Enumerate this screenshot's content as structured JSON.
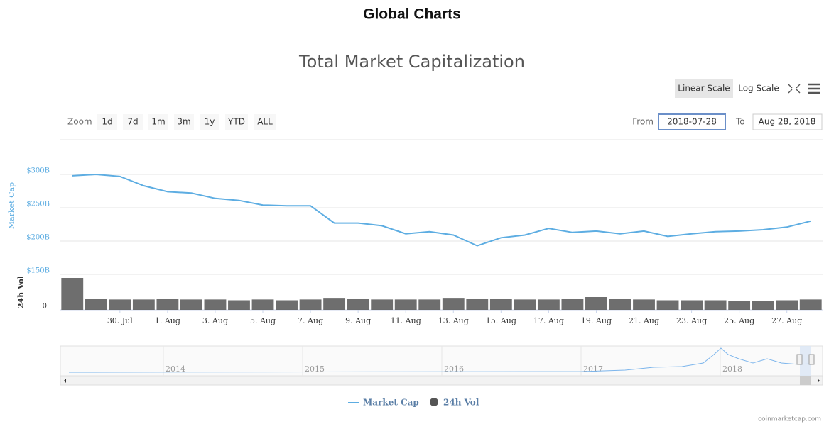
{
  "page_title": "Global Charts",
  "ui": {
    "scale_buttons": [
      "Linear Scale",
      "Log Scale"
    ],
    "zoom_label": "Zoom",
    "zoom_buttons": [
      "1d",
      "7d",
      "1m",
      "3m",
      "1y",
      "YTD",
      "ALL"
    ],
    "from_label": "From",
    "from_value": "2018-07-28",
    "to_label": "To",
    "to_value": "Aug 28, 2018",
    "navigator_labels": [
      "2014",
      "2015",
      "2016",
      "2017",
      "2018"
    ],
    "credit": "coinmarketcap.com"
  },
  "chart_data": {
    "type": "line",
    "title": "Total Market Capitalization",
    "y_label": "Market Cap",
    "y2_label": "24h Vol",
    "categories": [
      null,
      null,
      "30. Jul",
      null,
      "1. Aug",
      null,
      "3. Aug",
      null,
      "5. Aug",
      null,
      "7. Aug",
      null,
      "9. Aug",
      null,
      "11. Aug",
      null,
      "13. Aug",
      null,
      "15. Aug",
      null,
      "17. Aug",
      null,
      "19. Aug",
      null,
      "21. Aug",
      null,
      "23. Aug",
      null,
      "25. Aug",
      null,
      "27. Aug",
      null
    ],
    "series": [
      {
        "name": "Market Cap",
        "color": "#5dade2",
        "type": "line",
        "values": [
          298,
          300,
          297,
          283,
          274,
          272,
          264,
          261,
          254,
          253,
          253,
          227,
          227,
          223,
          211,
          214,
          209,
          193,
          205,
          209,
          219,
          213,
          215,
          211,
          215,
          207,
          211,
          214,
          215,
          217,
          221,
          230
        ]
      },
      {
        "name": "24h Vol",
        "color": "#555555",
        "type": "bar",
        "axis": "y2",
        "values": [
          40,
          14,
          13,
          13,
          14,
          13,
          13,
          12,
          13,
          12,
          13,
          15,
          14,
          13,
          13,
          13,
          15,
          14,
          14,
          13,
          13,
          14,
          16,
          14,
          13,
          12,
          12,
          12,
          11,
          11,
          12,
          13
        ]
      }
    ],
    "ylim": [
      150,
      350
    ],
    "yticks": [
      {
        "value": 150,
        "label": "$150B"
      },
      {
        "value": 200,
        "label": "$200B"
      },
      {
        "value": 250,
        "label": "$250B"
      },
      {
        "value": 300,
        "label": "$300B"
      }
    ],
    "y2lim": [
      0,
      40
    ],
    "y2ticks": [
      0
    ],
    "grid": true
  }
}
